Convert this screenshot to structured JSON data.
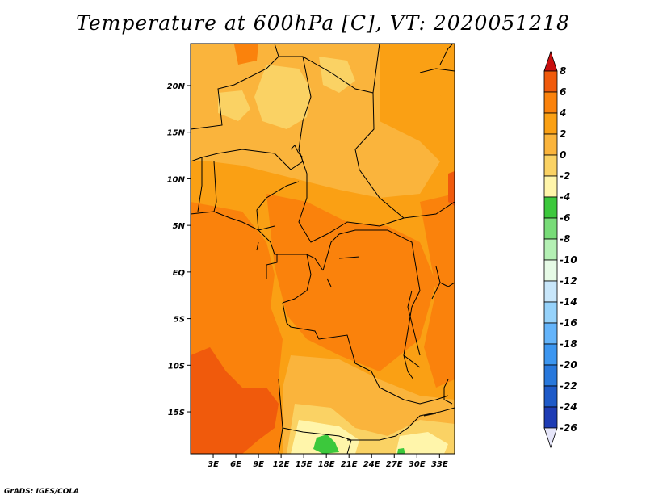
{
  "title": "Temperature at 600hPa [C], VT: 2020051218",
  "credit": "GrADS: IGES/COLA",
  "map": {
    "lon_range": [
      0,
      35
    ],
    "lat_range": [
      -19.5,
      24.5
    ],
    "lat_ticks": [
      {
        "value": 20,
        "label": "20N"
      },
      {
        "value": 15,
        "label": "15N"
      },
      {
        "value": 10,
        "label": "10N"
      },
      {
        "value": 5,
        "label": "5N"
      },
      {
        "value": 0,
        "label": "EQ"
      },
      {
        "value": -5,
        "label": "5S"
      },
      {
        "value": -10,
        "label": "10S"
      },
      {
        "value": -15,
        "label": "15S"
      }
    ],
    "lon_ticks": [
      {
        "value": 3,
        "label": "3E"
      },
      {
        "value": 6,
        "label": "6E"
      },
      {
        "value": 9,
        "label": "9E"
      },
      {
        "value": 12,
        "label": "12E"
      },
      {
        "value": 15,
        "label": "15E"
      },
      {
        "value": 18,
        "label": "18E"
      },
      {
        "value": 21,
        "label": "21E"
      },
      {
        "value": 24,
        "label": "24E"
      },
      {
        "value": 27,
        "label": "27E"
      },
      {
        "value": 30,
        "label": "30E"
      },
      {
        "value": 33,
        "label": "33E"
      }
    ]
  },
  "colorbar": {
    "levels": [
      {
        "label": "8",
        "color": "#e1320f"
      },
      {
        "label": "6",
        "color": "#f05a0c"
      },
      {
        "label": "4",
        "color": "#fa820c"
      },
      {
        "label": "2",
        "color": "#faa014"
      },
      {
        "label": "0",
        "color": "#fab43c"
      },
      {
        "label": "-2",
        "color": "#fad264"
      },
      {
        "label": "-4",
        "color": "#fff5aa"
      },
      {
        "label": "-6",
        "color": "#3cc83c"
      },
      {
        "label": "-8",
        "color": "#78dc78"
      },
      {
        "label": "-10",
        "color": "#b4f0b4"
      },
      {
        "label": "-12",
        "color": "#e6fae6"
      },
      {
        "label": "-14",
        "color": "#c8e6fa"
      },
      {
        "label": "-16",
        "color": "#96d2fa"
      },
      {
        "label": "-18",
        "color": "#64b4fa"
      },
      {
        "label": "-20",
        "color": "#3c96f0"
      },
      {
        "label": "-22",
        "color": "#2878dc"
      },
      {
        "label": "-24",
        "color": "#1e5ac8"
      },
      {
        "label": "-26",
        "color": "#1e3cb4"
      }
    ],
    "top_color": "#c80f0f",
    "bottom_color": "#e6e6fa"
  }
}
